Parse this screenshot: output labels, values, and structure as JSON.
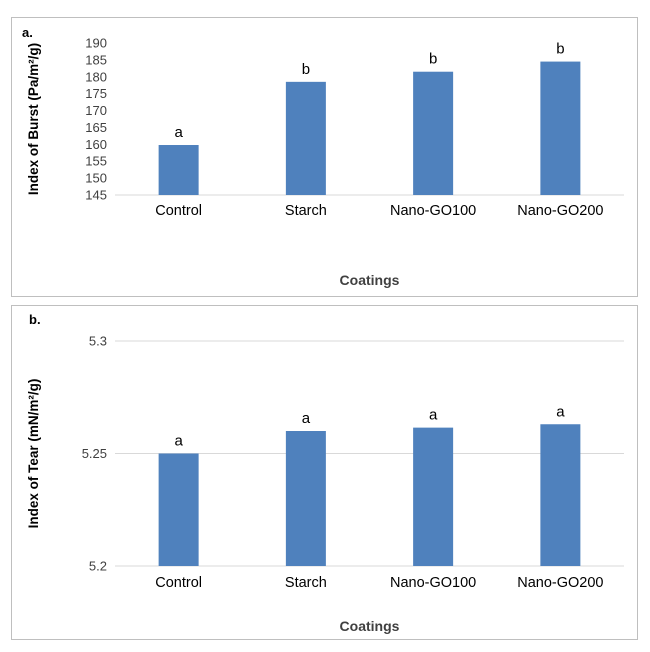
{
  "chart_data": [
    {
      "type": "bar",
      "panel_label": "a.",
      "categories": [
        "Control",
        "Starch",
        "Nano-GO100",
        "Nano-GO200"
      ],
      "values": [
        159.8,
        178.5,
        181.5,
        184.5
      ],
      "significance": [
        "a",
        "b",
        "b",
        "b"
      ],
      "xlabel": "Coatings",
      "ylabel": "Index of Burst (Pa/m²/g)",
      "ylim": [
        145,
        190
      ],
      "yticks": [
        "145",
        "150",
        "155",
        "160",
        "165",
        "170",
        "175",
        "180",
        "185",
        "190"
      ],
      "grid": false,
      "bar_color": "#4f81bd"
    },
    {
      "type": "bar",
      "panel_label": "b.",
      "categories": [
        "Control",
        "Starch",
        "Nano-GO100",
        "Nano-GO200"
      ],
      "values": [
        5.25,
        5.26,
        5.2615,
        5.263
      ],
      "significance": [
        "a",
        "a",
        "a",
        "a"
      ],
      "xlabel": "Coatings",
      "ylabel": "Index of Tear (mN/m²/g)",
      "ylim": [
        5.2,
        5.3
      ],
      "yticks": [
        "5.2",
        "5.25",
        "5.3"
      ],
      "grid": true,
      "bar_color": "#4f81bd"
    }
  ]
}
